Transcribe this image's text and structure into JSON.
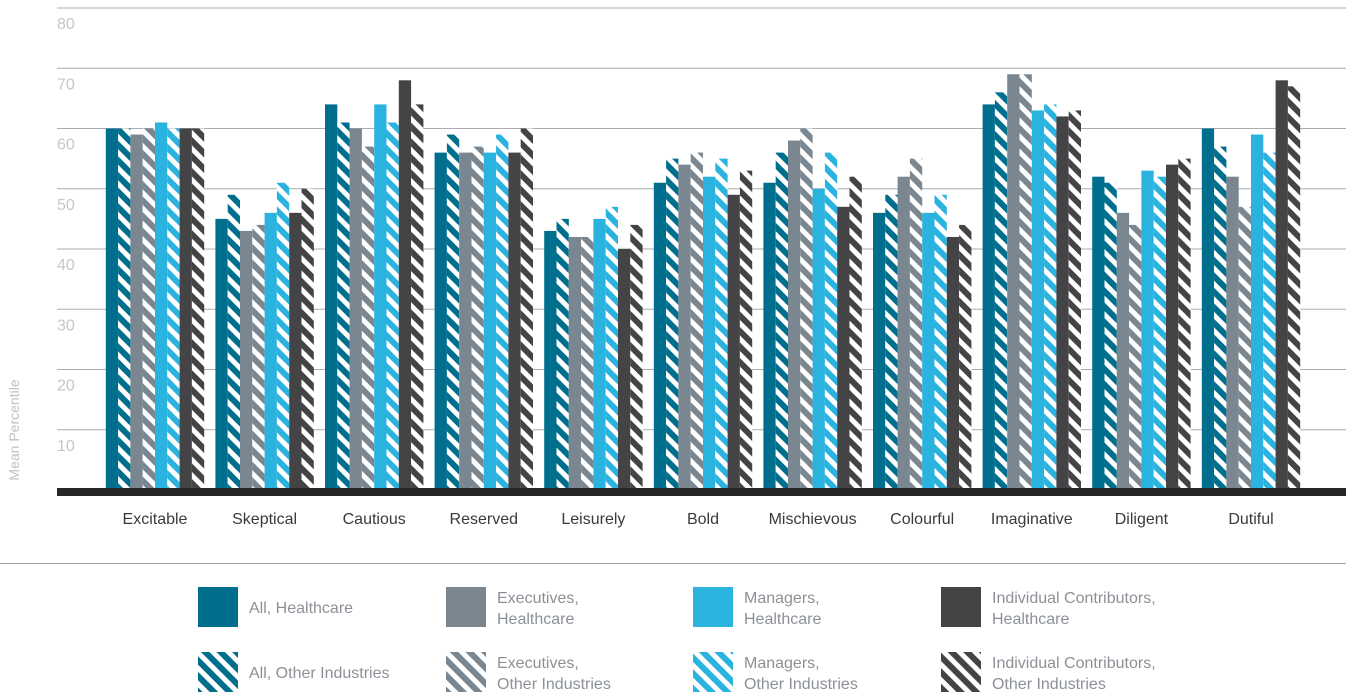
{
  "chart_data": {
    "type": "bar",
    "ylabel": "Mean Percentile",
    "ylim": [
      0,
      80
    ],
    "yticks": [
      "10",
      "20",
      "30",
      "40",
      "50",
      "60",
      "70",
      "80"
    ],
    "grid": true,
    "legend_position": "bottom",
    "categories": [
      "Excitable",
      "Skeptical",
      "Cautious",
      "Reserved",
      "Leisurely",
      "Bold",
      "Mischievous",
      "Colourful",
      "Imaginative",
      "Diligent",
      "Dutiful"
    ],
    "series": [
      {
        "name": "All, Healthcare",
        "legend_lines": [
          "All, Healthcare"
        ],
        "color": "#006f8e",
        "pattern": "solid",
        "values": [
          60,
          45,
          64,
          56,
          43,
          51,
          51,
          46,
          64,
          52,
          60
        ]
      },
      {
        "name": "All, Other Industries",
        "legend_lines": [
          "All, Other Industries"
        ],
        "color": "#006f8e",
        "pattern": "striped",
        "values": [
          60,
          49,
          61,
          59,
          45,
          55,
          56,
          49,
          66,
          51,
          57
        ]
      },
      {
        "name": "Executives, Healthcare",
        "legend_lines": [
          "Executives,",
          "Healthcare"
        ],
        "color": "#7a8690",
        "pattern": "solid",
        "values": [
          59,
          43,
          60,
          56,
          42,
          54,
          58,
          52,
          69,
          46,
          52
        ]
      },
      {
        "name": "Executives, Other Industries",
        "legend_lines": [
          "Executives,",
          "Other Industries"
        ],
        "color": "#7a8690",
        "pattern": "striped",
        "values": [
          60,
          44,
          57,
          57,
          42,
          56,
          60,
          55,
          69,
          44,
          47
        ]
      },
      {
        "name": "Managers, Healthcare",
        "legend_lines": [
          "Managers,",
          "Healthcare"
        ],
        "color": "#2bb3e0",
        "pattern": "solid",
        "values": [
          61,
          46,
          64,
          56,
          45,
          52,
          50,
          46,
          63,
          53,
          59
        ]
      },
      {
        "name": "Managers, Other Industries",
        "legend_lines": [
          "Managers,",
          "Other Industries"
        ],
        "color": "#2bb3e0",
        "pattern": "striped",
        "values": [
          60,
          51,
          61,
          59,
          47,
          55,
          56,
          49,
          64,
          52,
          56
        ]
      },
      {
        "name": "Individual Contributors, Healthcare",
        "legend_lines": [
          "Individual Contributors,",
          "Healthcare"
        ],
        "color": "#444446",
        "pattern": "solid",
        "values": [
          60,
          46,
          68,
          56,
          40,
          49,
          47,
          42,
          62,
          54,
          68
        ]
      },
      {
        "name": "Individual Contributors, Other Industries",
        "legend_lines": [
          "Individual Contributors,",
          "Other Industries"
        ],
        "color": "#444446",
        "pattern": "striped",
        "values": [
          60,
          50,
          64,
          60,
          44,
          53,
          52,
          44,
          63,
          55,
          67
        ]
      }
    ]
  }
}
